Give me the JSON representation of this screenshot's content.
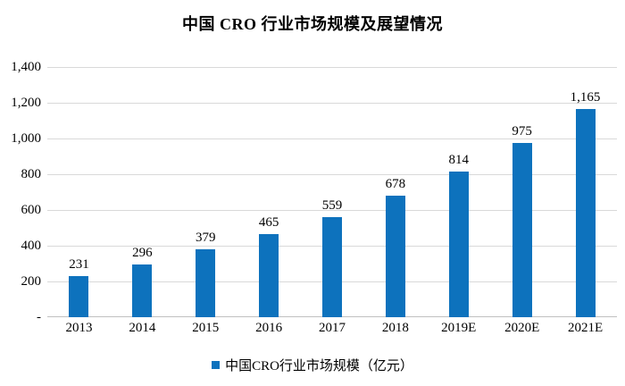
{
  "chart_data": {
    "type": "bar",
    "title": "中国 CRO 行业市场规模及展望情况",
    "series_name": "中国CRO行业市场规模（亿元）",
    "categories": [
      "2013",
      "2014",
      "2015",
      "2016",
      "2017",
      "2018",
      "2019E",
      "2020E",
      "2021E"
    ],
    "values": [
      231,
      296,
      379,
      465,
      559,
      678,
      814,
      975,
      1165
    ],
    "value_labels": [
      "231",
      "296",
      "379",
      "465",
      "559",
      "678",
      "814",
      "975",
      "1,165"
    ],
    "xlabel": "",
    "ylabel": "",
    "ylim": [
      0,
      1400
    ],
    "ytick_interval": 200,
    "ytick_labels": [
      "-",
      "200",
      "400",
      "600",
      "800",
      "1,000",
      "1,200",
      "1,400"
    ],
    "grid": true,
    "legend_position": "bottom",
    "bar_color": "#0d72bd",
    "gridline_color": "#d9d9d9",
    "axis_color": "#c0c0c0",
    "text_color": "#000000"
  }
}
